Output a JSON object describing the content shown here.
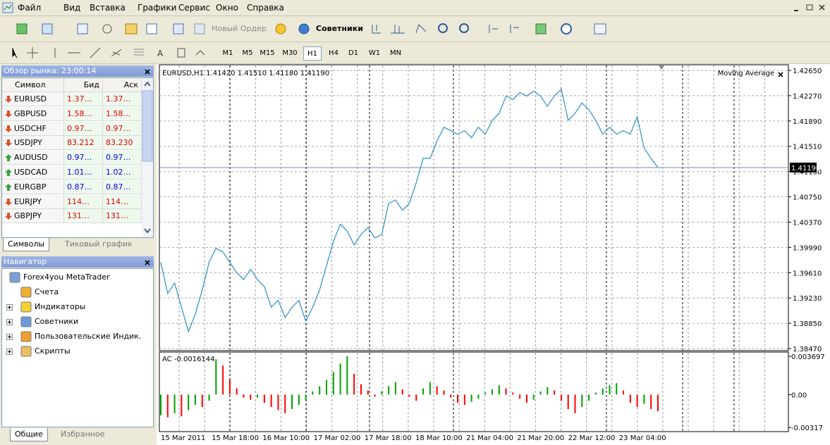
{
  "menu": [
    "Файл",
    "Вид",
    "Вставка",
    "Графики",
    "Сервис",
    "Окно",
    "Справка"
  ],
  "toolbar": {
    "new_order": "Новый Ордер",
    "experts": "Советники",
    "timeframes": [
      "M1",
      "M5",
      "M15",
      "M30",
      "H1",
      "H4",
      "D1",
      "W1",
      "MN"
    ],
    "active": "H1"
  },
  "market_watch": {
    "title": "Обзор рынка: 23:00:14",
    "columns": [
      "Символ",
      "Бид",
      "Аск"
    ],
    "rows": [
      {
        "symbol": "EURUSD",
        "bid": "1.37…",
        "ask": "1.37…",
        "trend": "down"
      },
      {
        "symbol": "GBPUSD",
        "bid": "1.58…",
        "ask": "1.58…",
        "trend": "down"
      },
      {
        "symbol": "USDCHF",
        "bid": "0.97…",
        "ask": "0.97…",
        "trend": "down"
      },
      {
        "symbol": "USDJPY",
        "bid": "83.212",
        "ask": "83.230",
        "trend": "down"
      },
      {
        "symbol": "AUDUSD",
        "bid": "0.97…",
        "ask": "0.97…",
        "trend": "up"
      },
      {
        "symbol": "USDCAD",
        "bid": "1.01…",
        "ask": "1.02…",
        "trend": "up"
      },
      {
        "symbol": "EURGBP",
        "bid": "0.87…",
        "ask": "0.87…",
        "trend": "up"
      },
      {
        "symbol": "EURJPY",
        "bid": "114…",
        "ask": "114…",
        "trend": "down"
      },
      {
        "symbol": "GBPJPY",
        "bid": "131…",
        "ask": "131…",
        "trend": "down"
      }
    ],
    "tabs": [
      "Символы",
      "Тиковый график"
    ]
  },
  "navigator": {
    "title": "Навигатор",
    "items": [
      {
        "label": "Forex4you MetaTrader",
        "level": 0,
        "expandable": false
      },
      {
        "label": "Счета",
        "level": 1,
        "expandable": false
      },
      {
        "label": "Индикаторы",
        "level": 1,
        "expandable": true
      },
      {
        "label": "Советники",
        "level": 1,
        "expandable": true
      },
      {
        "label": "Пользовательские Индик.",
        "level": 1,
        "expandable": true
      },
      {
        "label": "Скрипты",
        "level": 1,
        "expandable": true
      }
    ],
    "tabs": [
      "Общие",
      "Избранное"
    ]
  },
  "time_axis": [
    "15 Mar 2011",
    "15 Mar 18:00",
    "16 Mar 10:00",
    "17 Mar 02:00",
    "17 Mar 18:00",
    "18 Mar 10:00",
    "21 Mar 04:00",
    "21 Mar 20:00",
    "22 Mar 12:00",
    "23 Mar 04:00"
  ],
  "chart_data": [
    {
      "type": "line",
      "title": "EURUSD,H1  1.41420 1.41510 1.41180 1.41190",
      "indicator": "Moving Average",
      "color": "#2a8fc6",
      "values": [
        1.39766,
        1.39298,
        1.39454,
        1.3909,
        1.38725,
        1.38986,
        1.3935,
        1.39766,
        1.39975,
        1.39923,
        1.39766,
        1.3961,
        1.39506,
        1.39662,
        1.39506,
        1.39402,
        1.3909,
        1.39194,
        1.38934,
        1.3909,
        1.39194,
        1.38882,
        1.3909,
        1.3935,
        1.39714,
        1.40079,
        1.40339,
        1.40235,
        1.40027,
        1.40183,
        1.40287,
        1.40131,
        1.40183,
        1.40651,
        1.40703,
        1.40547,
        1.40651,
        1.40964,
        1.41328,
        1.41328,
        1.41588,
        1.41796,
        1.41744,
        1.41692,
        1.41744,
        1.4164,
        1.41796,
        1.41692,
        1.419,
        1.42005,
        1.42265,
        1.42213,
        1.42317,
        1.42265,
        1.42338,
        1.42265,
        1.42109,
        1.42265,
        1.42369,
        1.419,
        1.42005,
        1.42161,
        1.42057,
        1.419,
        1.41692,
        1.41796,
        1.41692,
        1.41744,
        1.41692,
        1.41953,
        1.41484,
        1.41328,
        1.4119
      ],
      "ylim": [
        1.3847,
        1.4265
      ],
      "yticks": [
        {
          "value": 1.4265,
          "label": "1.42650"
        },
        {
          "value": 1.4227,
          "label": "1.42270"
        },
        {
          "value": 1.4189,
          "label": "1.41890"
        },
        {
          "value": 1.4151,
          "label": "1.41510"
        },
        {
          "value": 1.4113,
          "label": "1.41130"
        },
        {
          "value": 1.4075,
          "label": "1.40750"
        },
        {
          "value": 1.4037,
          "label": "1.40370"
        },
        {
          "value": 1.3999,
          "label": "1.39990"
        },
        {
          "value": 1.3961,
          "label": "1.39610"
        },
        {
          "value": 1.3923,
          "label": "1.39230"
        },
        {
          "value": 1.3885,
          "label": "1.38850"
        },
        {
          "value": 1.3847,
          "label": "1.38470"
        }
      ],
      "current": {
        "value": 1.4119,
        "label": "1.41190"
      },
      "grid": true
    },
    {
      "type": "bar",
      "title": "AC -0.0016144",
      "values": [
        -0.002,
        -0.0022,
        -0.0018,
        -0.0021,
        -0.0015,
        -0.001,
        -0.0012,
        -0.0006,
        0.0034,
        0.0028,
        0.0015,
        0.0006,
        -0.0003,
        -0.0005,
        -0.0003,
        -0.0008,
        -0.0012,
        -0.0015,
        -0.0018,
        -0.0014,
        -0.001,
        -0.0006,
        0.0003,
        0.0008,
        0.0014,
        0.0022,
        0.003,
        0.0037,
        0.002,
        0.001,
        0.0004,
        -0.0002,
        0.0003,
        0.0008,
        0.0012,
        0.0005,
        -0.0002,
        -0.0006,
        0.0006,
        0.0012,
        0.0008,
        0.0004,
        -0.0003,
        -0.0008,
        -0.001,
        -0.0007,
        -0.0004,
        0.0002,
        0.0005,
        0.0009,
        0.0006,
        0.0002,
        -0.0004,
        -0.0008,
        -0.0005,
        0.0003,
        0.0007,
        0.0004,
        -0.0006,
        -0.0014,
        -0.0018,
        -0.0012,
        -0.0006,
        0.0002,
        0.0006,
        0.0009,
        0.0011,
        0.0004,
        -0.0008,
        -0.0012,
        -0.0009,
        -0.0014,
        -0.0016144
      ],
      "ylim": [
        -0.00317,
        0.003697
      ],
      "yticks": [
        0.003697,
        {
          "value": 0,
          "label": "0.00"
        },
        -0.00317
      ],
      "colors": {
        "up": "#00a000",
        "down": "#ff0000"
      }
    }
  ]
}
